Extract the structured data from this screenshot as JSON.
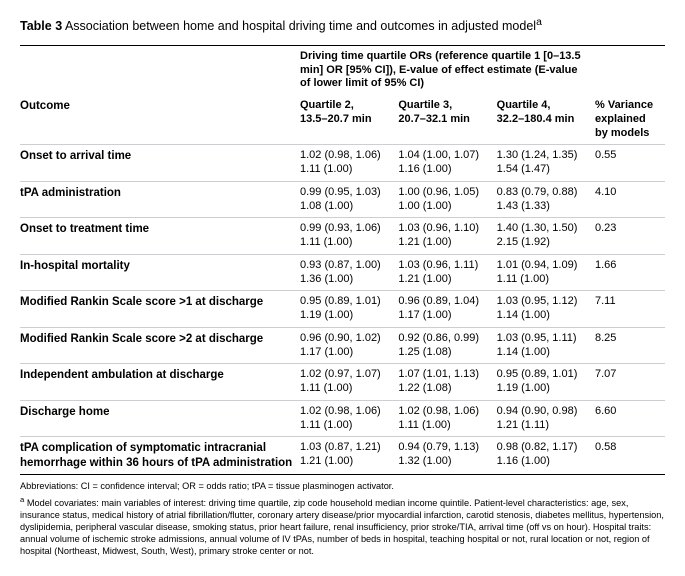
{
  "title_prefix": "Table 3",
  "title_rest": " Association between home and hospital driving time and outcomes in adjusted model",
  "title_sup": "a",
  "spanner": "Driving time quartile ORs (reference quartile 1 [0–13.5 min] OR [95% CI]), E-value of effect estimate (E-value of lower limit of 95% CI)",
  "headers": {
    "outcome": "Outcome",
    "q2a": "Quartile 2,",
    "q2b": "13.5–20.7 min",
    "q3a": "Quartile 3,",
    "q3b": "20.7–32.1 min",
    "q4a": "Quartile 4,",
    "q4b": "32.2–180.4 min",
    "var_a": "% Variance",
    "var_b": "explained by models"
  },
  "rows": [
    {
      "o": "Onset to arrival time",
      "q2a": "1.02 (0.98, 1.06)",
      "q2b": "1.11 (1.00)",
      "q3a": "1.04 (1.00, 1.07)",
      "q3b": "1.16 (1.00)",
      "q4a": "1.30 (1.24, 1.35)",
      "q4b": "1.54 (1.47)",
      "v": "0.55"
    },
    {
      "o": "tPA administration",
      "q2a": "0.99 (0.95, 1.03)",
      "q2b": "1.08 (1.00)",
      "q3a": "1.00 (0.96, 1.05)",
      "q3b": "1.00 (1.00)",
      "q4a": "0.83 (0.79, 0.88)",
      "q4b": "1.43 (1.33)",
      "v": "4.10"
    },
    {
      "o": "Onset to treatment time",
      "q2a": "0.99 (0.93, 1.06)",
      "q2b": "1.11 (1.00)",
      "q3a": "1.03 (0.96, 1.10)",
      "q3b": "1.21 (1.00)",
      "q4a": "1.40 (1.30, 1.50)",
      "q4b": "2.15 (1.92)",
      "v": "0.23"
    },
    {
      "o": "In-hospital mortality",
      "q2a": "0.93 (0.87, 1.00)",
      "q2b": "1.36 (1.00)",
      "q3a": "1.03 (0.96, 1.11)",
      "q3b": "1.21 (1.00)",
      "q4a": "1.01 (0.94, 1.09)",
      "q4b": "1.11 (1.00)",
      "v": "1.66"
    },
    {
      "o": "Modified Rankin Scale score >1 at discharge",
      "q2a": "0.95 (0.89, 1.01)",
      "q2b": "1.19 (1.00)",
      "q3a": "0.96 (0.89, 1.04)",
      "q3b": "1.17 (1.00)",
      "q4a": "1.03 (0.95, 1.12)",
      "q4b": "1.14 (1.00)",
      "v": "7.11"
    },
    {
      "o": "Modified Rankin Scale score >2 at discharge",
      "q2a": "0.96 (0.90, 1.02)",
      "q2b": "1.17 (1.00)",
      "q3a": "0.92 (0.86, 0.99)",
      "q3b": "1.25 (1.08)",
      "q4a": "1.03 (0.95, 1.11)",
      "q4b": "1.14 (1.00)",
      "v": "8.25"
    },
    {
      "o": "Independent ambulation at discharge",
      "q2a": "1.02 (0.97, 1.07)",
      "q2b": "1.11 (1.00)",
      "q3a": "1.07 (1.01, 1.13)",
      "q3b": "1.22 (1.08)",
      "q4a": "0.95 (0.89, 1.01)",
      "q4b": "1.19 (1.00)",
      "v": "7.07"
    },
    {
      "o": "Discharge home",
      "q2a": "1.02 (0.98, 1.06)",
      "q2b": "1.11 (1.00)",
      "q3a": "1.02 (0.98, 1.06)",
      "q3b": "1.11 (1.00)",
      "q4a": "0.94 (0.90, 0.98)",
      "q4b": "1.21 (1.11)",
      "v": "6.60"
    },
    {
      "o": "tPA complication of symptomatic intracranial hemorrhage within 36 hours of tPA administration",
      "q2a": "1.03 (0.87, 1.21)",
      "q2b": "1.21 (1.00)",
      "q3a": "0.94 (0.79, 1.13)",
      "q3b": "1.32 (1.00)",
      "q4a": "0.98 (0.82, 1.17)",
      "q4b": "1.16 (1.00)",
      "v": "0.58"
    }
  ],
  "foot_abbrev": "Abbreviations: CI = confidence interval; OR = odds ratio; tPA = tissue plasminogen activator.",
  "foot_a_sup": "a",
  "foot_a": " Model covariates: main variables of interest: driving time quartile, zip code household median income quintile. Patient-level characteristics: age, sex, insurance status, medical history of atrial fibrillation/flutter, coronary artery disease/prior myocardial infarction, carotid stenosis, diabetes mellitus, hypertension, dyslipidemia, peripheral vascular disease, smoking status, prior heart failure, renal insufficiency, prior stroke/TIA, arrival time (off vs on hour). Hospital traits: annual volume of ischemic stroke admissions, annual volume of IV tPAs, number of beds in hospital, teaching hospital or not, rural location or not, region of hospital (Northeast, Midwest, South, West), primary stroke center or not."
}
